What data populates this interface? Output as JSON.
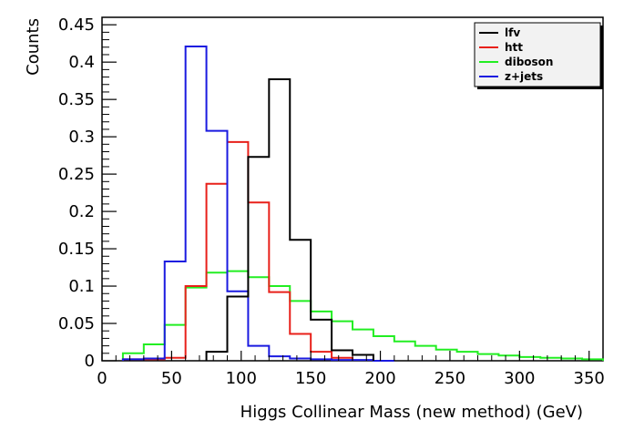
{
  "chart_data": {
    "type": "histogram",
    "xlabel": "Higgs Collinear Mass (new method) (GeV)",
    "ylabel": "Counts",
    "xlim": [
      0,
      360
    ],
    "ylim": [
      0,
      0.46
    ],
    "bin_width": 15,
    "x_ticks": [
      0,
      50,
      100,
      150,
      200,
      250,
      300,
      350
    ],
    "y_ticks": [
      0,
      0.05,
      0.1,
      0.15,
      0.2,
      0.25,
      0.3,
      0.35,
      0.4,
      0.45
    ],
    "x_tick_labels": [
      "0",
      "50",
      "100",
      "150",
      "200",
      "250",
      "300",
      "350"
    ],
    "y_tick_labels": [
      "0",
      "0.05",
      "0.1",
      "0.15",
      "0.2",
      "0.25",
      "0.3",
      "0.35",
      "0.4",
      "0.45"
    ],
    "legend_position": "top-right",
    "grid": false,
    "series": [
      {
        "name": "lfv",
        "color": "#000000",
        "bin_edges": [
          75,
          90,
          105,
          120,
          135,
          150,
          165,
          180,
          195
        ],
        "values": [
          0.012,
          0.086,
          0.273,
          0.377,
          0.162,
          0.055,
          0.014,
          0.008
        ]
      },
      {
        "name": "htt",
        "color": "#e8201a",
        "bin_edges": [
          15,
          30,
          45,
          60,
          75,
          90,
          105,
          120,
          135,
          150,
          165,
          180
        ],
        "values": [
          0.002,
          0.002,
          0.004,
          0.1,
          0.237,
          0.293,
          0.212,
          0.092,
          0.036,
          0.012,
          0.004
        ]
      },
      {
        "name": "diboson",
        "color": "#22ee22",
        "bin_edges": [
          15,
          30,
          45,
          60,
          75,
          90,
          105,
          120,
          135,
          150,
          165,
          180,
          195,
          210,
          225,
          240,
          255,
          270,
          285,
          300,
          315,
          330,
          345,
          360
        ],
        "values": [
          0.01,
          0.022,
          0.048,
          0.098,
          0.118,
          0.12,
          0.112,
          0.1,
          0.08,
          0.066,
          0.053,
          0.042,
          0.033,
          0.026,
          0.02,
          0.015,
          0.012,
          0.009,
          0.007,
          0.005,
          0.004,
          0.003,
          0.002
        ]
      },
      {
        "name": "z+jets",
        "color": "#1a1ae0",
        "bin_edges": [
          15,
          30,
          45,
          60,
          75,
          90,
          105,
          120,
          135,
          150,
          165,
          180,
          195,
          210
        ],
        "values": [
          0.002,
          0.003,
          0.133,
          0.421,
          0.308,
          0.093,
          0.02,
          0.006,
          0.003,
          0.002,
          0.001,
          0.001,
          0.0
        ]
      }
    ]
  }
}
